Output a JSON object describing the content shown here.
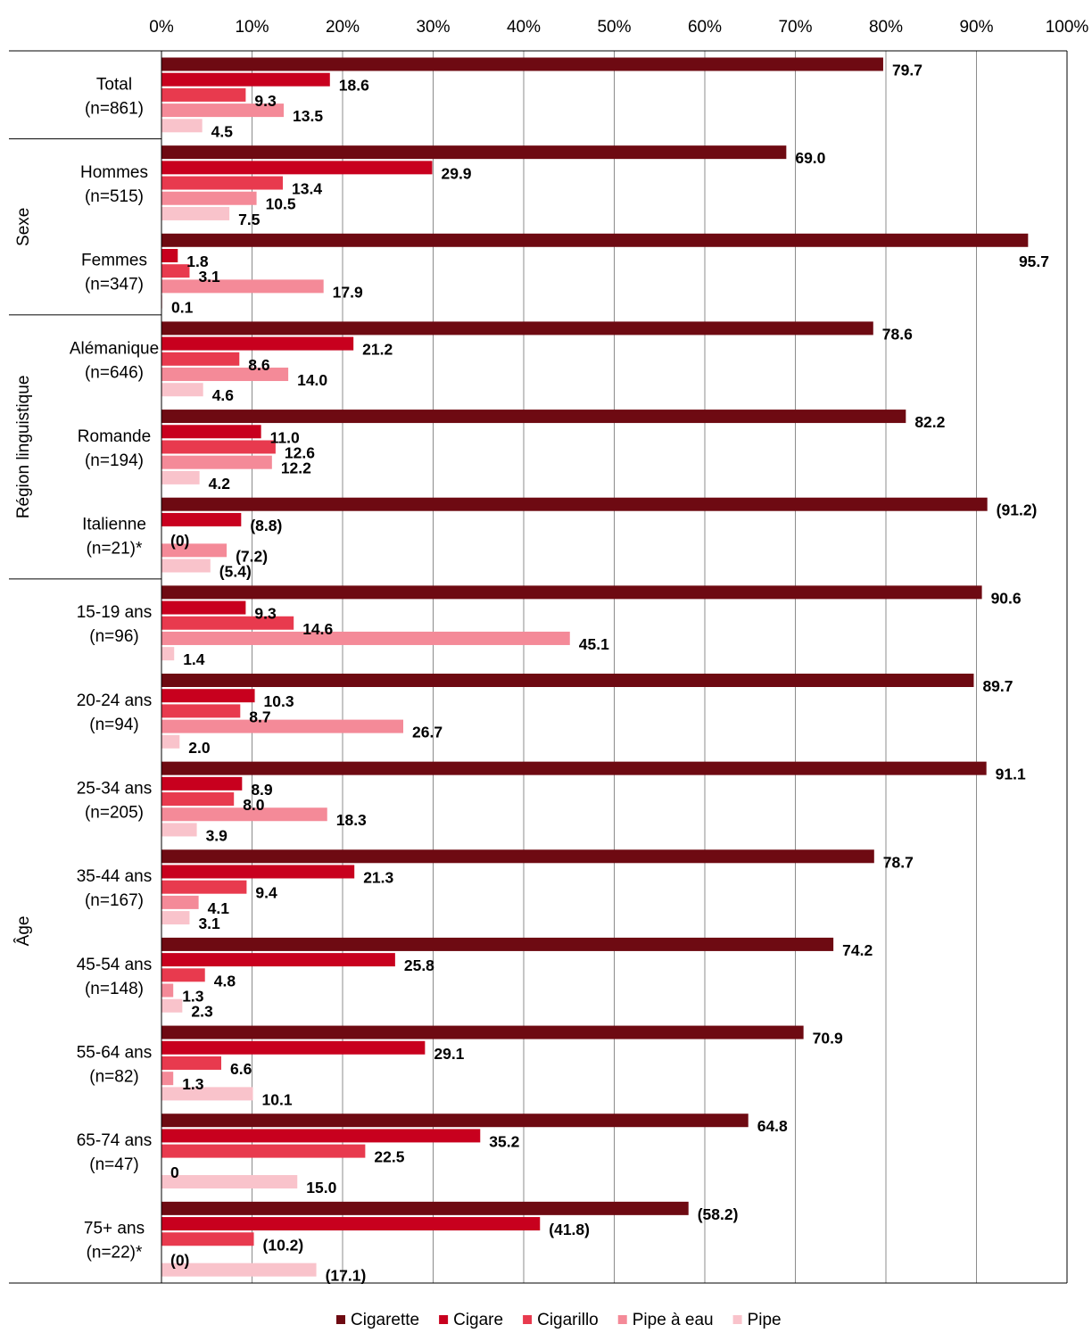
{
  "chart_data": {
    "type": "bar",
    "orientation": "horizontal",
    "xlim": [
      0,
      100
    ],
    "xticks": [
      "0%",
      "10%",
      "20%",
      "30%",
      "40%",
      "50%",
      "60%",
      "70%",
      "80%",
      "90%",
      "100%"
    ],
    "grid": true,
    "legend_position": "bottom",
    "series": [
      {
        "name": "Cigarette",
        "color": "#6e0a12"
      },
      {
        "name": "Cigare",
        "color": "#c8001e"
      },
      {
        "name": "Cigarillo",
        "color": "#e83a4e"
      },
      {
        "name": "Pipe à eau",
        "color": "#f48a98"
      },
      {
        "name": "Pipe",
        "color": "#f9c3cb"
      }
    ],
    "groups": [
      {
        "label": "",
        "start": 0,
        "end": 1
      },
      {
        "label": "Sexe",
        "start": 1,
        "end": 3
      },
      {
        "label": "Région linguistique",
        "start": 3,
        "end": 6
      },
      {
        "label": "Âge",
        "start": 6,
        "end": 14
      }
    ],
    "categories": [
      {
        "line1": "Total",
        "line2": "(n=861)",
        "values": [
          79.7,
          18.6,
          9.3,
          13.5,
          4.5
        ],
        "labels": [
          "79.7",
          "18.6",
          "9.3",
          "13.5",
          "4.5"
        ]
      },
      {
        "line1": "Hommes",
        "line2": "(n=515)",
        "values": [
          69.0,
          29.9,
          13.4,
          10.5,
          7.5
        ],
        "labels": [
          "69.0",
          "29.9",
          "13.4",
          "10.5",
          "7.5"
        ]
      },
      {
        "line1": "Femmes",
        "line2": "(n=347)",
        "values": [
          95.7,
          1.8,
          3.1,
          17.9,
          0.1
        ],
        "labels": [
          "95.7",
          "1.8",
          "3.1",
          "17.9",
          "0.1"
        ]
      },
      {
        "line1": "Alémanique",
        "line2": "(n=646)",
        "values": [
          78.6,
          21.2,
          8.6,
          14.0,
          4.6
        ],
        "labels": [
          "78.6",
          "21.2",
          "8.6",
          "14.0",
          "4.6"
        ]
      },
      {
        "line1": "Romande",
        "line2": "(n=194)",
        "values": [
          82.2,
          11.0,
          12.6,
          12.2,
          4.2
        ],
        "labels": [
          "82.2",
          "11.0",
          "12.6",
          "12.2",
          "4.2"
        ]
      },
      {
        "line1": "Italienne",
        "line2": "(n=21)*",
        "values": [
          91.2,
          8.8,
          0,
          7.2,
          5.4
        ],
        "labels": [
          "(91.2)",
          "(8.8)",
          "(0)",
          "(7.2)",
          "(5.4)"
        ]
      },
      {
        "line1": "15-19 ans",
        "line2": "(n=96)",
        "values": [
          90.6,
          9.3,
          14.6,
          45.1,
          1.4
        ],
        "labels": [
          "90.6",
          "9.3",
          "14.6",
          "45.1",
          "1.4"
        ]
      },
      {
        "line1": "20-24 ans",
        "line2": "(n=94)",
        "values": [
          89.7,
          10.3,
          8.7,
          26.7,
          2.0
        ],
        "labels": [
          "89.7",
          "10.3",
          "8.7",
          "26.7",
          "2.0"
        ]
      },
      {
        "line1": "25-34 ans",
        "line2": "(n=205)",
        "values": [
          91.1,
          8.9,
          8.0,
          18.3,
          3.9
        ],
        "labels": [
          "91.1",
          "8.9",
          "8.0",
          "18.3",
          "3.9"
        ]
      },
      {
        "line1": "35-44 ans",
        "line2": "(n=167)",
        "values": [
          78.7,
          21.3,
          9.4,
          4.1,
          3.1
        ],
        "labels": [
          "78.7",
          "21.3",
          "9.4",
          "4.1",
          "3.1"
        ]
      },
      {
        "line1": "45-54 ans",
        "line2": "(n=148)",
        "values": [
          74.2,
          25.8,
          4.8,
          1.3,
          2.3
        ],
        "labels": [
          "74.2",
          "25.8",
          "4.8",
          "1.3",
          "2.3"
        ]
      },
      {
        "line1": "55-64 ans",
        "line2": "(n=82)",
        "values": [
          70.9,
          29.1,
          6.6,
          1.3,
          10.1
        ],
        "labels": [
          "70.9",
          "29.1",
          "6.6",
          "1.3",
          "10.1"
        ]
      },
      {
        "line1": "65-74 ans",
        "line2": "(n=47)",
        "values": [
          64.8,
          35.2,
          22.5,
          0,
          15.0
        ],
        "labels": [
          "64.8",
          "35.2",
          "22.5",
          "0",
          "15.0"
        ]
      },
      {
        "line1": "75+ ans",
        "line2": "(n=22)*",
        "values": [
          58.2,
          41.8,
          10.2,
          0,
          17.1
        ],
        "labels": [
          "(58.2)",
          "(41.8)",
          "(10.2)",
          "(0)",
          "(17.1)"
        ]
      }
    ]
  }
}
